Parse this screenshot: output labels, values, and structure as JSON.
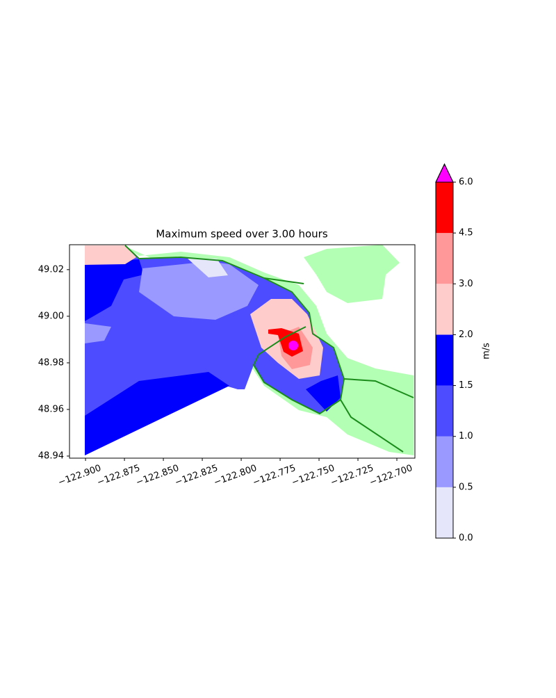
{
  "chart_data": {
    "type": "contourf",
    "title": "Maximum speed over 3.00 hours",
    "xlim": [
      -122.9103,
      -122.6884
    ],
    "ylim": [
      48.9391,
      49.0307
    ],
    "xticks": [
      {
        "value": -122.9,
        "label": "−122.900"
      },
      {
        "value": -122.875,
        "label": "−122.875"
      },
      {
        "value": -122.85,
        "label": "−122.850"
      },
      {
        "value": -122.825,
        "label": "−122.825"
      },
      {
        "value": -122.8,
        "label": "−122.800"
      },
      {
        "value": -122.775,
        "label": "−122.775"
      },
      {
        "value": -122.75,
        "label": "−122.750"
      },
      {
        "value": -122.725,
        "label": "−122.725"
      },
      {
        "value": -122.7,
        "label": "−122.700"
      }
    ],
    "yticks": [
      48.94,
      48.96,
      48.98,
      {
        "value": 49.0,
        "label": "49.00"
      },
      49.02
    ],
    "colorbar": {
      "label": "m/s",
      "levels": [
        {
          "value": 0,
          "label": "0.0"
        },
        {
          "value": 0.5,
          "label": "0.5"
        },
        {
          "value": 1,
          "label": "1.0"
        },
        {
          "value": 1.5,
          "label": "1.5"
        },
        {
          "value": 2,
          "label": "2.0"
        },
        {
          "value": 3,
          "label": "3.0"
        },
        {
          "value": 4.5,
          "label": "4.5"
        },
        {
          "value": 6,
          "label": "6.0"
        }
      ],
      "colors": [
        "#e6e6fa",
        "#9999ff",
        "#4d4dff",
        "#0000ff",
        "#ffcccc",
        "#ff9999",
        "#ff0000"
      ],
      "extend_color": "#ff00ff"
    }
  }
}
